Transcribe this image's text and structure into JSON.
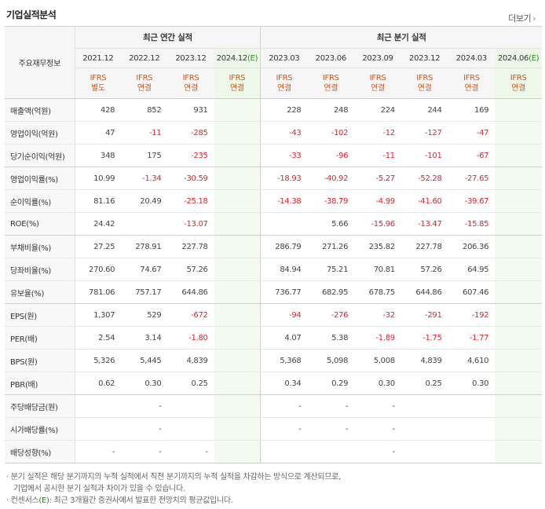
{
  "header": {
    "title": "기업실적분석",
    "more_label": "더보기",
    "more_arrow": "›"
  },
  "table": {
    "row_header_label": "주요재무정보",
    "group_annual": "최근 연간 실적",
    "group_quarter": "최근 분기 실적",
    "periods": [
      "2021.12",
      "2022.12",
      "2023.12",
      "2024.12",
      "2023.03",
      "2023.06",
      "2023.09",
      "2023.12",
      "2024.03",
      "2024.06"
    ],
    "estimate_suffix": "(E)",
    "standards": [
      [
        "IFRS",
        "별도"
      ],
      [
        "IFRS",
        "연결"
      ],
      [
        "IFRS",
        "연결"
      ],
      [
        "IFRS",
        "연결"
      ],
      [
        "IFRS",
        "연결"
      ],
      [
        "IFRS",
        "연결"
      ],
      [
        "IFRS",
        "연결"
      ],
      [
        "IFRS",
        "연결"
      ],
      [
        "IFRS",
        "연결"
      ],
      [
        "IFRS",
        "연결"
      ]
    ],
    "rows": [
      {
        "label": "매출액(억원)",
        "values": [
          "428",
          "852",
          "931",
          "",
          "228",
          "248",
          "224",
          "244",
          "169",
          ""
        ]
      },
      {
        "label": "영업이익(억원)",
        "values": [
          "47",
          "-11",
          "-285",
          "",
          "-43",
          "-102",
          "-12",
          "-127",
          "-47",
          ""
        ]
      },
      {
        "label": "당기순이익(억원)",
        "values": [
          "348",
          "175",
          "-235",
          "",
          "-33",
          "-96",
          "-11",
          "-101",
          "-67",
          ""
        ]
      },
      {
        "label": "영업이익률(%)",
        "values": [
          "10.99",
          "-1.34",
          "-30.59",
          "",
          "-18.93",
          "-40.92",
          "-5.27",
          "-52.28",
          "-27.65",
          ""
        ]
      },
      {
        "label": "순이익률(%)",
        "values": [
          "81.16",
          "20.49",
          "-25.18",
          "",
          "-14.38",
          "-38.79",
          "-4.99",
          "-41.60",
          "-39.67",
          ""
        ]
      },
      {
        "label": "ROE(%)",
        "values": [
          "24.42",
          "",
          "-13.07",
          "",
          "",
          "5.66",
          "-15.96",
          "-13.47",
          "-15.85",
          ""
        ]
      },
      {
        "label": "부채비율(%)",
        "values": [
          "27.25",
          "278.91",
          "227.78",
          "",
          "286.79",
          "271.26",
          "235.82",
          "227.78",
          "206.36",
          ""
        ]
      },
      {
        "label": "당좌비율(%)",
        "values": [
          "270.60",
          "74.67",
          "57.26",
          "",
          "84.94",
          "75.21",
          "70.81",
          "57.26",
          "64.95",
          ""
        ]
      },
      {
        "label": "유보율(%)",
        "values": [
          "781.06",
          "757.17",
          "644.86",
          "",
          "736.77",
          "682.95",
          "678.75",
          "644.86",
          "607.46",
          ""
        ]
      },
      {
        "label": "EPS(원)",
        "values": [
          "1,307",
          "529",
          "-672",
          "",
          "-94",
          "-276",
          "-32",
          "-291",
          "-192",
          ""
        ]
      },
      {
        "label": "PER(배)",
        "values": [
          "2.54",
          "3.14",
          "-1.80",
          "",
          "4.07",
          "5.38",
          "-1.89",
          "-1.75",
          "-1.77",
          ""
        ]
      },
      {
        "label": "BPS(원)",
        "values": [
          "5,326",
          "5,445",
          "4,839",
          "",
          "5,368",
          "5,098",
          "5,008",
          "4,839",
          "4,610",
          ""
        ]
      },
      {
        "label": "PBR(배)",
        "values": [
          "0.62",
          "0.30",
          "0.25",
          "",
          "0.34",
          "0.29",
          "0.30",
          "0.25",
          "0.30",
          ""
        ]
      },
      {
        "label": "주당배당금(원)",
        "values": [
          "",
          "-",
          "",
          "",
          "-",
          "-",
          "-",
          "",
          "",
          ""
        ]
      },
      {
        "label": "시가배당률(%)",
        "values": [
          "",
          "-",
          "",
          "",
          "-",
          "-",
          "-",
          "",
          "",
          ""
        ]
      },
      {
        "label": "배당성향(%)",
        "values": [
          "-",
          "-",
          "-",
          "",
          "",
          "",
          "-",
          "",
          "",
          ""
        ]
      }
    ]
  },
  "notes": {
    "line1": "분기 실적은 해당 분기까지의 누적 실적에서 직전 분기까지의 누적 실적을 차감하는 방식으로 계산되므로,",
    "line2": "기업에서 공시한 분기 실적과 차이가 있을 수 있습니다.",
    "line3_prefix": "컨센서스",
    "line3_e": "(E)",
    "line3_rest": ": 최근 3개월간 증권사에서 발표한 전망치의 평균값입니다."
  },
  "colors": {
    "negative": "#e4212b",
    "standard": "#e2520f",
    "estimate_bg": "#edf8e9",
    "estimate_mark": "#2f8b1f"
  }
}
